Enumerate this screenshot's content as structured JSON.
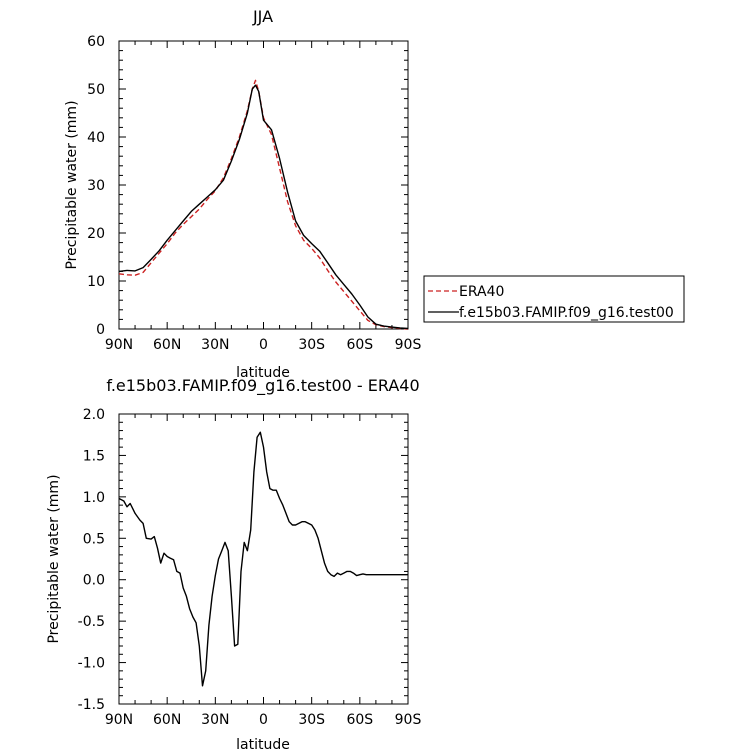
{
  "chart_data": [
    {
      "type": "line",
      "title": "JJA",
      "xlabel": "latitude",
      "ylabel": "Precipitable water (mm)",
      "xlim": [
        -90,
        90
      ],
      "ylim": [
        0,
        60
      ],
      "x_tick_values": [
        -90,
        -60,
        -30,
        0,
        30,
        60,
        90
      ],
      "x_tick_labels": [
        "90N",
        "60N",
        "30N",
        "0",
        "30S",
        "60S",
        "90S"
      ],
      "y_ticks": [
        0,
        10,
        20,
        30,
        40,
        50,
        60
      ],
      "legend_position": "right",
      "series": [
        {
          "name": "ERA40",
          "color": "#cc2222",
          "dash": "dashed",
          "x": [
            -90,
            -85,
            -80,
            -75,
            -70,
            -65,
            -60,
            -55,
            -50,
            -45,
            -40,
            -35,
            -30,
            -25,
            -20,
            -15,
            -10,
            -7,
            -5,
            -3,
            0,
            5,
            10,
            15,
            20,
            25,
            30,
            35,
            40,
            45,
            50,
            55,
            60,
            65,
            70,
            75,
            80,
            85,
            90
          ],
          "y": [
            11.5,
            11.3,
            11.2,
            11.8,
            13.8,
            15.8,
            17.8,
            20,
            21.8,
            23.4,
            25,
            27,
            28.8,
            31.5,
            35.5,
            40,
            45.5,
            50,
            51.8,
            49.5,
            44,
            40.5,
            33.5,
            26.5,
            21.5,
            18.5,
            16.8,
            14.8,
            12.2,
            9.8,
            7.8,
            5.8,
            3.8,
            1.8,
            0.9,
            0.5,
            0.3,
            0.1,
            0
          ]
        },
        {
          "name": "f.e15b03.FAMIP.f09_g16.test00",
          "color": "#000000",
          "dash": "solid",
          "x": [
            -90,
            -85,
            -80,
            -75,
            -70,
            -65,
            -60,
            -55,
            -50,
            -45,
            -40,
            -35,
            -30,
            -25,
            -20,
            -15,
            -10,
            -7,
            -5,
            -3,
            0,
            5,
            10,
            15,
            20,
            25,
            30,
            35,
            40,
            45,
            50,
            55,
            60,
            65,
            70,
            75,
            80,
            85,
            90
          ],
          "y": [
            12,
            12.2,
            12.1,
            12.8,
            14.5,
            16.3,
            18.5,
            20.5,
            22.5,
            24.5,
            26,
            27.5,
            29,
            31,
            35,
            39.5,
            45,
            50,
            50.8,
            49.5,
            43.5,
            41.5,
            35.5,
            28.5,
            22.5,
            19.5,
            17.8,
            16.2,
            13.8,
            11.3,
            9.3,
            7.3,
            5,
            2.5,
            1,
            0.6,
            0.4,
            0.2,
            0.1
          ]
        }
      ]
    },
    {
      "type": "line",
      "title": "f.e15b03.FAMIP.f09_g16.test00 - ERA40",
      "xlabel": "latitude",
      "ylabel": "Precipitable water (mm)",
      "xlim": [
        -90,
        90
      ],
      "ylim": [
        -1.5,
        2.0
      ],
      "x_tick_values": [
        -90,
        -60,
        -30,
        0,
        30,
        60,
        90
      ],
      "x_tick_labels": [
        "90N",
        "60N",
        "30N",
        "0",
        "30S",
        "60S",
        "90S"
      ],
      "y_ticks": [
        -1.5,
        -1.0,
        -0.5,
        0.0,
        0.5,
        1.0,
        1.5,
        2.0
      ],
      "y_tick_labels": [
        "-1.5",
        "-1.0",
        "-0.5",
        "0.0",
        "0.5",
        "1.0",
        "1.5",
        "2.0"
      ],
      "series": [
        {
          "color": "#000000",
          "dash": "solid",
          "x": [
            -90,
            -87,
            -85,
            -83,
            -80,
            -77,
            -75,
            -73,
            -70,
            -68,
            -66,
            -64,
            -62,
            -60,
            -58,
            -56,
            -54,
            -52,
            -50,
            -48,
            -46,
            -44,
            -42,
            -40,
            -38,
            -36,
            -34,
            -32,
            -30,
            -28,
            -26,
            -24,
            -22,
            -20,
            -18,
            -16,
            -14,
            -12,
            -10,
            -8,
            -6,
            -4,
            -2,
            0,
            2,
            4,
            6,
            8,
            10,
            12,
            14,
            16,
            18,
            20,
            22,
            24,
            26,
            28,
            30,
            32,
            34,
            36,
            38,
            40,
            42,
            44,
            46,
            48,
            50,
            52,
            54,
            56,
            58,
            60,
            62,
            64,
            66,
            68,
            70,
            72,
            74,
            76,
            78,
            80,
            82,
            84,
            86,
            88,
            90
          ],
          "y": [
            0.98,
            0.95,
            0.88,
            0.92,
            0.8,
            0.72,
            0.68,
            0.5,
            0.49,
            0.52,
            0.38,
            0.2,
            0.32,
            0.28,
            0.26,
            0.24,
            0.1,
            0.08,
            -0.1,
            -0.2,
            -0.35,
            -0.45,
            -0.52,
            -0.8,
            -1.28,
            -1.1,
            -0.55,
            -0.2,
            0.05,
            0.25,
            0.35,
            0.45,
            0.35,
            -0.2,
            -0.8,
            -0.78,
            0.1,
            0.45,
            0.35,
            0.6,
            1.3,
            1.72,
            1.78,
            1.6,
            1.3,
            1.1,
            1.08,
            1.08,
            0.98,
            0.9,
            0.8,
            0.7,
            0.66,
            0.66,
            0.68,
            0.7,
            0.7,
            0.68,
            0.66,
            0.6,
            0.5,
            0.35,
            0.2,
            0.1,
            0.06,
            0.04,
            0.08,
            0.06,
            0.08,
            0.1,
            0.1,
            0.08,
            0.05,
            0.06,
            0.07,
            0.06,
            0.06,
            0.06,
            0.06,
            0.06,
            0.06,
            0.06,
            0.06,
            0.06,
            0.06,
            0.06,
            0.06,
            0.06,
            0.06
          ]
        }
      ]
    }
  ]
}
